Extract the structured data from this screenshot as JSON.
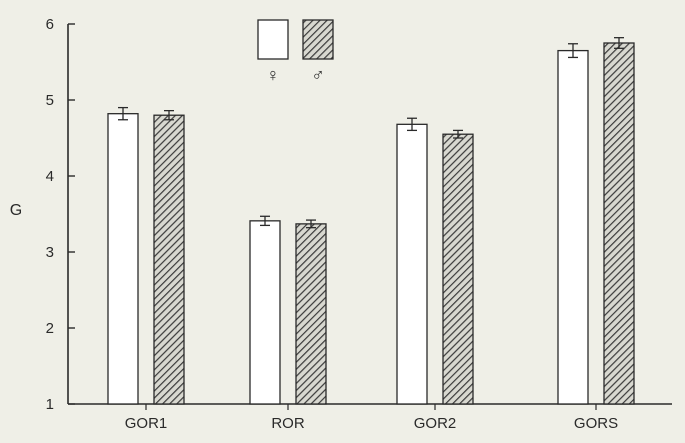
{
  "chart_data": {
    "type": "bar",
    "categories": [
      "GOR1",
      "ROR",
      "GOR2",
      "GORS"
    ],
    "ylabel": "G",
    "xlabel": "",
    "ylim": [
      1,
      6
    ],
    "yticks": [
      1,
      2,
      3,
      4,
      5,
      6
    ],
    "grid": false,
    "legend_position": "top-center",
    "series": [
      {
        "name": "♀",
        "pattern": "plain",
        "fill": "#ffffff",
        "values": [
          4.82,
          3.41,
          4.68,
          5.65
        ],
        "errors": [
          0.08,
          0.06,
          0.08,
          0.09
        ]
      },
      {
        "name": "♂",
        "pattern": "hatched",
        "fill": "#9a9a9a",
        "values": [
          4.8,
          3.37,
          4.55,
          5.75
        ],
        "errors": [
          0.06,
          0.05,
          0.05,
          0.07
        ]
      }
    ]
  },
  "colors": {
    "background": "#efefe7",
    "axis": "#2a2a2a",
    "hatch": "#3a3a3a"
  }
}
